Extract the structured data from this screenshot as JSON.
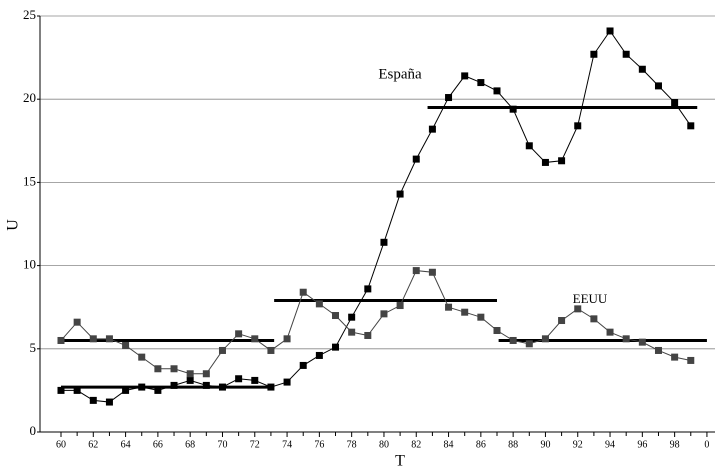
{
  "chart_data": {
    "type": "line",
    "xlabel": "T",
    "ylabel": "U",
    "x": [
      60,
      61,
      62,
      63,
      64,
      65,
      66,
      67,
      68,
      69,
      70,
      71,
      72,
      73,
      74,
      75,
      76,
      77,
      78,
      79,
      80,
      81,
      82,
      83,
      84,
      85,
      86,
      87,
      88,
      89,
      90,
      91,
      92,
      93,
      94,
      95,
      96,
      97,
      98,
      99
    ],
    "series": [
      {
        "name": "España",
        "color": "#000000",
        "values": [
          2.5,
          2.5,
          1.9,
          1.8,
          2.5,
          2.7,
          2.5,
          2.8,
          3.1,
          2.8,
          2.7,
          3.2,
          3.1,
          2.7,
          3.0,
          4.0,
          4.6,
          5.1,
          6.9,
          8.6,
          11.4,
          14.3,
          16.4,
          18.2,
          20.1,
          21.4,
          21.0,
          20.5,
          19.4,
          17.2,
          16.2,
          16.3,
          18.4,
          22.7,
          24.1,
          22.7,
          21.8,
          20.8,
          19.8,
          18.4
        ]
      },
      {
        "name": "EEUU",
        "color": "#444444",
        "values": [
          5.5,
          6.6,
          5.6,
          5.6,
          5.2,
          4.5,
          3.8,
          3.8,
          3.5,
          3.5,
          4.9,
          5.9,
          5.6,
          4.9,
          5.6,
          8.4,
          7.7,
          7.0,
          6.0,
          5.8,
          7.1,
          7.6,
          9.7,
          9.6,
          7.5,
          7.2,
          6.9,
          6.1,
          5.5,
          5.3,
          5.6,
          6.7,
          7.4,
          6.8,
          6.0,
          5.6,
          5.4,
          4.9,
          4.5,
          4.3
        ]
      }
    ],
    "mean_segments": [
      {
        "x": [
          60,
          73.2
        ],
        "y": 5.5
      },
      {
        "x": [
          60,
          73.2
        ],
        "y": 2.7
      },
      {
        "x": [
          73.2,
          87
        ],
        "y": 7.9
      },
      {
        "x": [
          82.7,
          99.4
        ],
        "y": 19.5
      },
      {
        "x": [
          87.1,
          100
        ],
        "y": 5.5
      }
    ],
    "xlim": [
      58.7,
      100.5
    ],
    "ylim": [
      0,
      25
    ],
    "xticks": [
      60,
      62,
      64,
      66,
      68,
      70,
      72,
      74,
      76,
      78,
      80,
      82,
      84,
      86,
      88,
      90,
      92,
      94,
      96,
      98,
      {
        "value": 100,
        "label": "0"
      }
    ],
    "xticks_minor": [
      61,
      63,
      65,
      67,
      69,
      71,
      73,
      75,
      77,
      79,
      81,
      83,
      85,
      87,
      89,
      91,
      93,
      95,
      97,
      99
    ],
    "yticks": [
      0,
      5,
      10,
      15,
      20,
      25
    ],
    "grid": true
  }
}
